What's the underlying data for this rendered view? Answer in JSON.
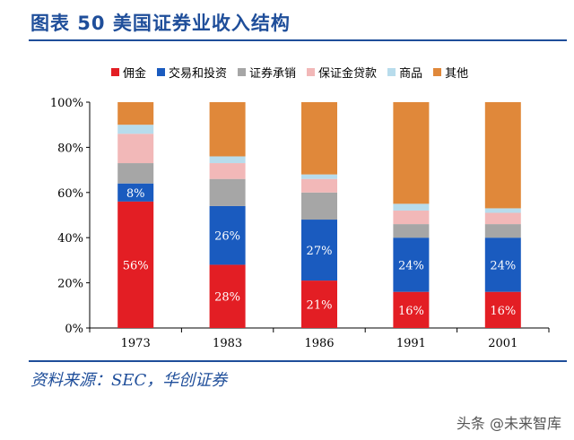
{
  "header": {
    "title": "图表 50  美国证券业收入结构"
  },
  "source": "资料来源：SEC，华创证券",
  "watermark": "头条 @未来智库",
  "chart_data": {
    "type": "bar",
    "stacked": true,
    "categories": [
      "1973",
      "1983",
      "1986",
      "1991",
      "2001"
    ],
    "ylim": [
      0,
      100
    ],
    "yticks": [
      "0%",
      "20%",
      "40%",
      "60%",
      "80%",
      "100%"
    ],
    "legend_position": "top",
    "series": [
      {
        "name": "佣金",
        "color": "#e31e24",
        "values": [
          56,
          28,
          21,
          16,
          16
        ],
        "labels": [
          "56%",
          "28%",
          "21%",
          "16%",
          "16%"
        ]
      },
      {
        "name": "交易和投资",
        "color": "#1a5bbf",
        "values": [
          8,
          26,
          27,
          24,
          24
        ],
        "labels": [
          "8%",
          "26%",
          "27%",
          "24%",
          "24%"
        ]
      },
      {
        "name": "证券承销",
        "color": "#a6a6a6",
        "values": [
          9,
          12,
          12,
          6,
          6
        ],
        "labels": [
          "",
          "",
          "",
          "",
          ""
        ]
      },
      {
        "name": "保证金贷款",
        "color": "#f2b8b8",
        "values": [
          13,
          7,
          6,
          6,
          5
        ],
        "labels": [
          "",
          "",
          "",
          "",
          ""
        ]
      },
      {
        "name": "商品",
        "color": "#b8dcec",
        "values": [
          4,
          3,
          2,
          3,
          2
        ],
        "labels": [
          "",
          "",
          "",
          "",
          ""
        ]
      },
      {
        "name": "其他",
        "color": "#e0883a",
        "values": [
          10,
          24,
          32,
          45,
          47
        ],
        "labels": [
          "",
          "",
          "",
          "",
          ""
        ]
      }
    ]
  }
}
